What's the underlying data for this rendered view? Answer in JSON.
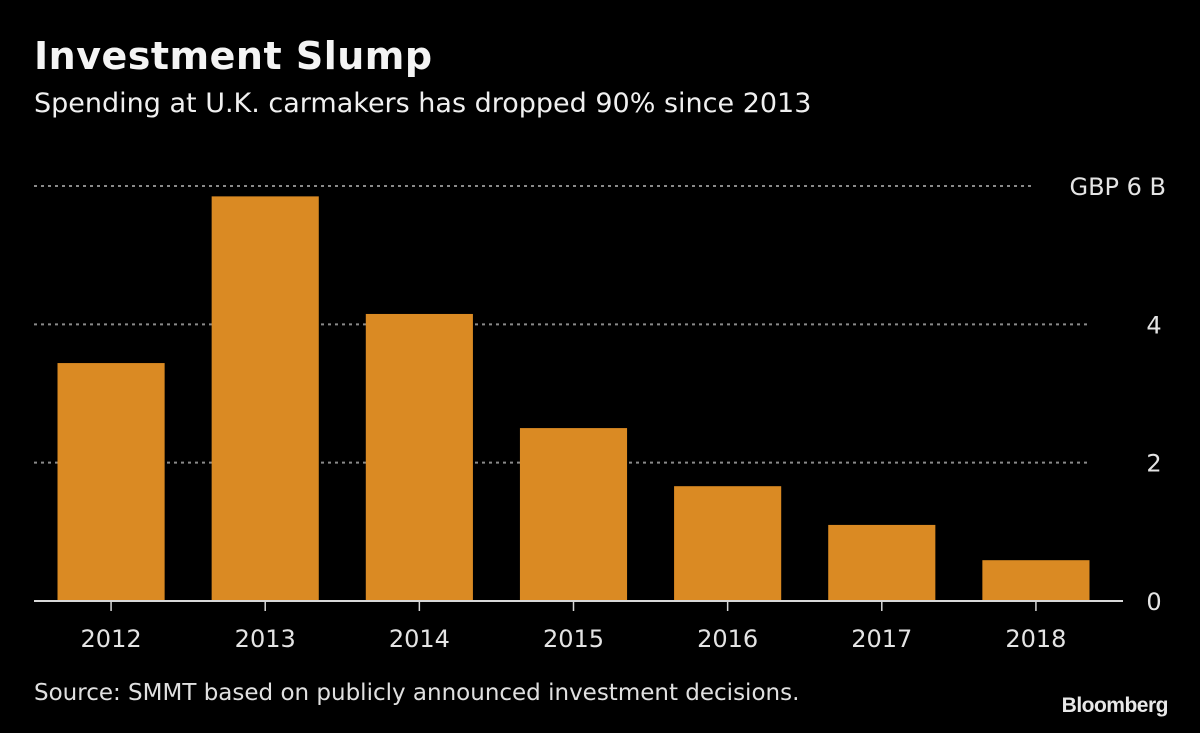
{
  "header": {
    "title": "Investment Slump",
    "subtitle": "Spending at U.K. carmakers has dropped 90% since 2013"
  },
  "footer": {
    "source": "Source: SMMT based on publicly announced investment decisions.",
    "brand": "Bloomberg"
  },
  "colors": {
    "bar": "#DA8A23",
    "background": "#000000",
    "grid": "#8a8a8a",
    "axis": "#d8d8d8"
  },
  "chart_data": {
    "type": "bar",
    "title": "Investment Slump",
    "subtitle": "Spending at U.K. carmakers has dropped 90% since 2013",
    "categories": [
      "2012",
      "2013",
      "2014",
      "2015",
      "2016",
      "2017",
      "2018"
    ],
    "values": [
      3.44,
      5.85,
      4.15,
      2.5,
      1.66,
      1.1,
      0.59
    ],
    "unit": "GBP B",
    "xlabel": "",
    "ylabel": "",
    "ylim": [
      0,
      6
    ],
    "yticks": [
      0,
      2,
      4,
      6
    ],
    "ytick_labels": [
      "0",
      "2",
      "4",
      "GBP 6 B"
    ],
    "y_axis_side": "right",
    "grid": true,
    "legend": "none"
  }
}
